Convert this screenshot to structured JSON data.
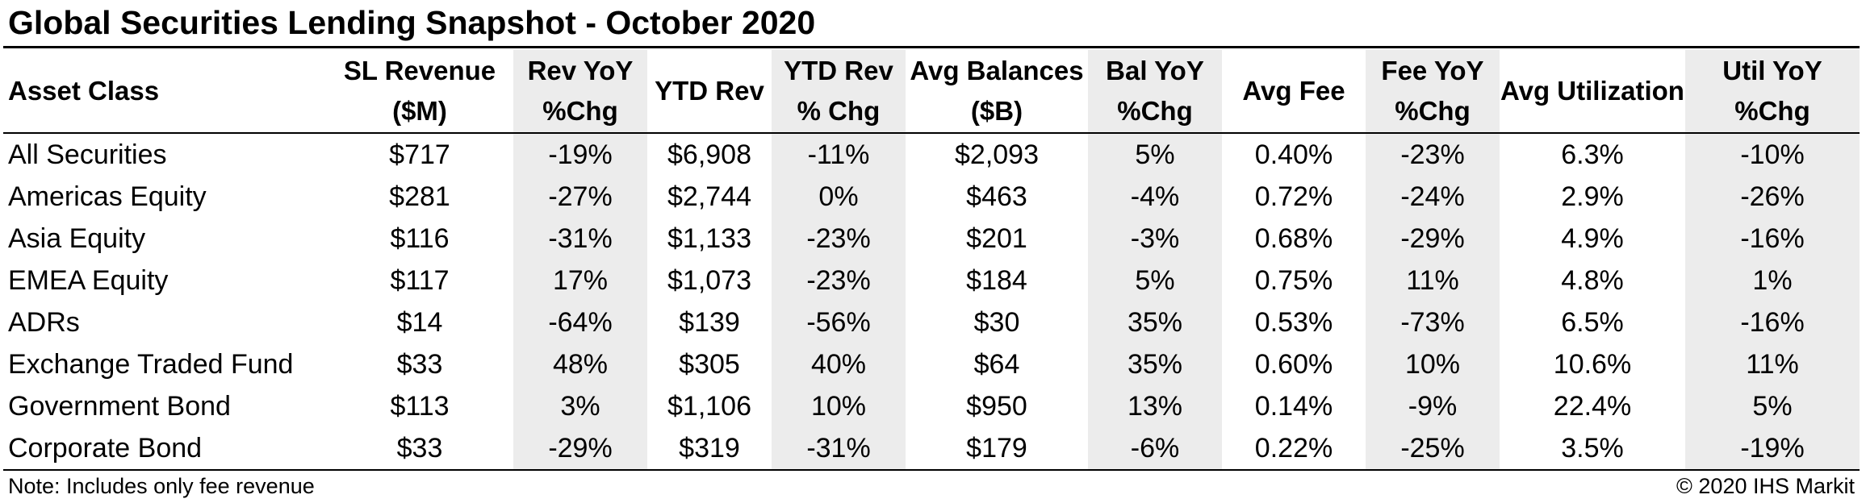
{
  "chart_data": {
    "type": "table",
    "title": "Global Securities Lending Snapshot - October 2020",
    "columns": [
      {
        "label": "Asset Class",
        "shaded": false
      },
      {
        "label": "SL Revenue ($M)",
        "shaded": false
      },
      {
        "label": "Rev YoY %Chg",
        "shaded": true
      },
      {
        "label": "YTD Rev",
        "shaded": false
      },
      {
        "label": "YTD Rev % Chg",
        "shaded": true
      },
      {
        "label": "Avg Balances ($B)",
        "shaded": false
      },
      {
        "label": "Bal YoY %Chg",
        "shaded": true
      },
      {
        "label": "Avg Fee",
        "shaded": false
      },
      {
        "label": "Fee YoY %Chg",
        "shaded": true
      },
      {
        "label": "Avg Utilization",
        "shaded": false
      },
      {
        "label": "Util YoY %Chg",
        "shaded": true
      }
    ],
    "rows": [
      [
        "All Securities",
        "$717",
        "-19%",
        "$6,908",
        "-11%",
        "$2,093",
        "5%",
        "0.40%",
        "-23%",
        "6.3%",
        "-10%"
      ],
      [
        "Americas Equity",
        "$281",
        "-27%",
        "$2,744",
        "0%",
        "$463",
        "-4%",
        "0.72%",
        "-24%",
        "2.9%",
        "-26%"
      ],
      [
        "Asia Equity",
        "$116",
        "-31%",
        "$1,133",
        "-23%",
        "$201",
        "-3%",
        "0.68%",
        "-29%",
        "4.9%",
        "-16%"
      ],
      [
        "EMEA Equity",
        "$117",
        "17%",
        "$1,073",
        "-23%",
        "$184",
        "5%",
        "0.75%",
        "11%",
        "4.8%",
        "1%"
      ],
      [
        "ADRs",
        "$14",
        "-64%",
        "$139",
        "-56%",
        "$30",
        "35%",
        "0.53%",
        "-73%",
        "6.5%",
        "-16%"
      ],
      [
        "Exchange Traded Fund",
        "$33",
        "48%",
        "$305",
        "40%",
        "$64",
        "35%",
        "0.60%",
        "10%",
        "10.6%",
        "11%"
      ],
      [
        "Government Bond",
        "$113",
        "3%",
        "$1,106",
        "10%",
        "$950",
        "13%",
        "0.14%",
        "-9%",
        "22.4%",
        "5%"
      ],
      [
        "Corporate Bond",
        "$33",
        "-29%",
        "$319",
        "-31%",
        "$179",
        "-6%",
        "0.22%",
        "-25%",
        "3.5%",
        "-19%"
      ]
    ],
    "note": "Note: Includes only fee revenue",
    "source": "© 2020 IHS Markit"
  }
}
